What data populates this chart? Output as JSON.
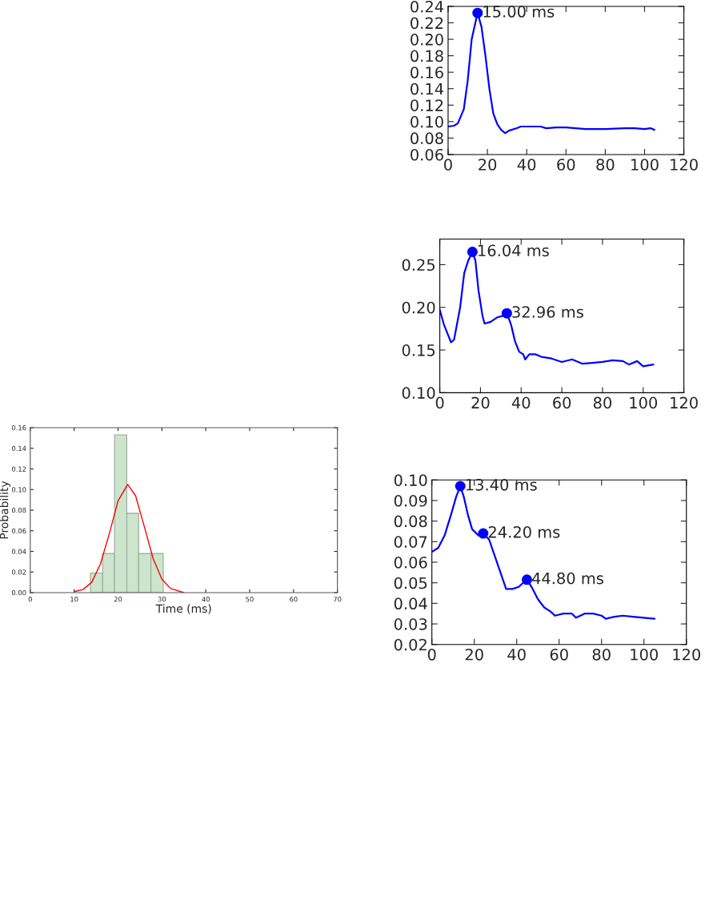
{
  "chart_data": [
    {
      "type": "histogram",
      "xlabel": "Time (ms)",
      "ylabel": "Probability",
      "bins": [
        13.7,
        16.5,
        19.2,
        22.0,
        24.7,
        27.5,
        30.3
      ],
      "values": [
        0.019,
        0.038,
        0.153,
        0.077,
        0.038,
        0.038
      ],
      "color": "#cce5cc",
      "series": [
        {
          "type": "line",
          "color": "#ff0000",
          "x": [
            10,
            12,
            14,
            16,
            18,
            20,
            22.2,
            24,
            26,
            28,
            30,
            32,
            35
          ],
          "values": [
            0.001,
            0.003,
            0.01,
            0.028,
            0.057,
            0.089,
            0.105,
            0.094,
            0.064,
            0.033,
            0.013,
            0.004,
            0.0
          ]
        }
      ],
      "xlim": [
        0,
        70
      ],
      "xticks": [
        0,
        10,
        20,
        30,
        40,
        50,
        60,
        70
      ],
      "ylim": [
        0,
        0.16
      ],
      "yticks": [
        {
          "value": 0,
          "label": "0.00"
        },
        {
          "value": 0.02,
          "label": "0.02"
        },
        {
          "value": 0.04,
          "label": "0.04"
        },
        {
          "value": 0.06,
          "label": "0.06"
        },
        {
          "value": 0.08,
          "label": "0.08"
        },
        {
          "value": 0.1,
          "label": "0.10"
        },
        {
          "value": 0.12,
          "label": "0.12"
        },
        {
          "value": 0.14,
          "label": "0.14"
        },
        {
          "value": 0.16,
          "label": "0.16"
        }
      ]
    },
    {
      "type": "line",
      "series": [
        {
          "type": "line",
          "color": "#0000ff",
          "x": [
            0,
            3,
            5,
            8,
            10,
            12,
            15,
            17,
            19,
            21,
            23,
            25,
            27,
            29,
            31,
            35,
            37,
            47,
            50,
            55,
            60,
            65,
            70,
            80,
            90,
            95,
            100,
            103,
            105
          ],
          "values": [
            0.094,
            0.095,
            0.098,
            0.115,
            0.15,
            0.2,
            0.232,
            0.215,
            0.18,
            0.14,
            0.11,
            0.097,
            0.09,
            0.086,
            0.089,
            0.092,
            0.094,
            0.094,
            0.092,
            0.093,
            0.093,
            0.092,
            0.091,
            0.091,
            0.092,
            0.092,
            0.091,
            0.092,
            0.09
          ]
        },
        {
          "type": "scatter",
          "color": "#0000ff",
          "marker": "circle",
          "x": [
            15.0
          ],
          "values": [
            0.232
          ]
        }
      ],
      "annotations": [
        {
          "text": "15.00 ms",
          "x": 15.0,
          "y": 0.232
        }
      ],
      "xlim": [
        0,
        120
      ],
      "xticks": [
        0,
        20,
        40,
        60,
        80,
        100,
        120
      ],
      "ylim": [
        0.06,
        0.24
      ],
      "yticks": [
        {
          "value": 0.06,
          "label": "0.06"
        },
        {
          "value": 0.08,
          "label": "0.08"
        },
        {
          "value": 0.1,
          "label": "0.10"
        },
        {
          "value": 0.12,
          "label": "0.12"
        },
        {
          "value": 0.14,
          "label": "0.14"
        },
        {
          "value": 0.16,
          "label": "0.16"
        },
        {
          "value": 0.18,
          "label": "0.18"
        },
        {
          "value": 0.2,
          "label": "0.20"
        },
        {
          "value": 0.22,
          "label": "0.22"
        },
        {
          "value": 0.24,
          "label": "0.24"
        }
      ]
    },
    {
      "type": "line",
      "series": [
        {
          "type": "line",
          "color": "#0000ff",
          "x": [
            0,
            2,
            4,
            5.5,
            7,
            10,
            12,
            14,
            16.04,
            17.5,
            19,
            21,
            22,
            25,
            28,
            31,
            32.96,
            35,
            37,
            39,
            41,
            42,
            44,
            47,
            50,
            55,
            60,
            65,
            70,
            75,
            80,
            85,
            90,
            93,
            97,
            100,
            105
          ],
          "values": [
            0.197,
            0.18,
            0.168,
            0.159,
            0.162,
            0.2,
            0.24,
            0.255,
            0.265,
            0.255,
            0.22,
            0.19,
            0.181,
            0.183,
            0.188,
            0.19,
            0.193,
            0.18,
            0.16,
            0.148,
            0.145,
            0.139,
            0.145,
            0.145,
            0.142,
            0.14,
            0.136,
            0.139,
            0.134,
            0.135,
            0.136,
            0.138,
            0.137,
            0.133,
            0.137,
            0.131,
            0.133
          ]
        },
        {
          "type": "scatter",
          "color": "#0000ff",
          "marker": "circle",
          "x": [
            16.04,
            32.96
          ],
          "values": [
            0.265,
            0.193
          ]
        }
      ],
      "annotations": [
        {
          "text": "16.04 ms",
          "x": 16.04,
          "y": 0.265
        },
        {
          "text": "32.96 ms",
          "x": 32.96,
          "y": 0.193
        }
      ],
      "xlim": [
        0,
        120
      ],
      "xticks": [
        0,
        20,
        40,
        60,
        80,
        100,
        120
      ],
      "ylim": [
        0.1,
        0.28
      ],
      "yticks": [
        {
          "value": 0.1,
          "label": "0.10"
        },
        {
          "value": 0.15,
          "label": "0.15"
        },
        {
          "value": 0.2,
          "label": "0.20"
        },
        {
          "value": 0.25,
          "label": "0.25"
        }
      ]
    },
    {
      "type": "line",
      "series": [
        {
          "type": "line",
          "color": "#0000ff",
          "x": [
            0,
            3,
            6,
            9,
            11.5,
            13.4,
            15,
            17,
            19,
            22,
            24.2,
            27,
            30,
            33,
            35,
            38,
            41,
            43,
            44.8,
            47,
            50,
            53,
            56,
            58,
            62,
            66,
            68,
            72,
            76,
            80,
            82,
            86,
            90,
            95,
            100,
            105
          ],
          "values": [
            0.065,
            0.067,
            0.073,
            0.083,
            0.092,
            0.097,
            0.092,
            0.083,
            0.076,
            0.073,
            0.074,
            0.071,
            0.062,
            0.053,
            0.047,
            0.047,
            0.048,
            0.05,
            0.0515,
            0.048,
            0.042,
            0.038,
            0.036,
            0.034,
            0.035,
            0.035,
            0.033,
            0.035,
            0.035,
            0.034,
            0.0325,
            0.0335,
            0.034,
            0.0335,
            0.033,
            0.0325
          ]
        },
        {
          "type": "scatter",
          "color": "#0000ff",
          "marker": "circle",
          "x": [
            13.4,
            24.2,
            44.8
          ],
          "values": [
            0.097,
            0.074,
            0.0515
          ]
        }
      ],
      "annotations": [
        {
          "text": "13.40 ms",
          "x": 13.4,
          "y": 0.097
        },
        {
          "text": "24.20 ms",
          "x": 24.2,
          "y": 0.074
        },
        {
          "text": "44.80 ms",
          "x": 44.8,
          "y": 0.0515
        }
      ],
      "xlim": [
        0,
        120
      ],
      "xticks": [
        0,
        20,
        40,
        60,
        80,
        100,
        120
      ],
      "ylim": [
        0.02,
        0.1
      ],
      "yticks": [
        {
          "value": 0.02,
          "label": "0.02"
        },
        {
          "value": 0.03,
          "label": "0.03"
        },
        {
          "value": 0.04,
          "label": "0.04"
        },
        {
          "value": 0.05,
          "label": "0.05"
        },
        {
          "value": 0.06,
          "label": "0.06"
        },
        {
          "value": 0.07,
          "label": "0.07"
        },
        {
          "value": 0.08,
          "label": "0.08"
        },
        {
          "value": 0.09,
          "label": "0.09"
        },
        {
          "value": 0.1,
          "label": "0.10"
        }
      ]
    }
  ]
}
